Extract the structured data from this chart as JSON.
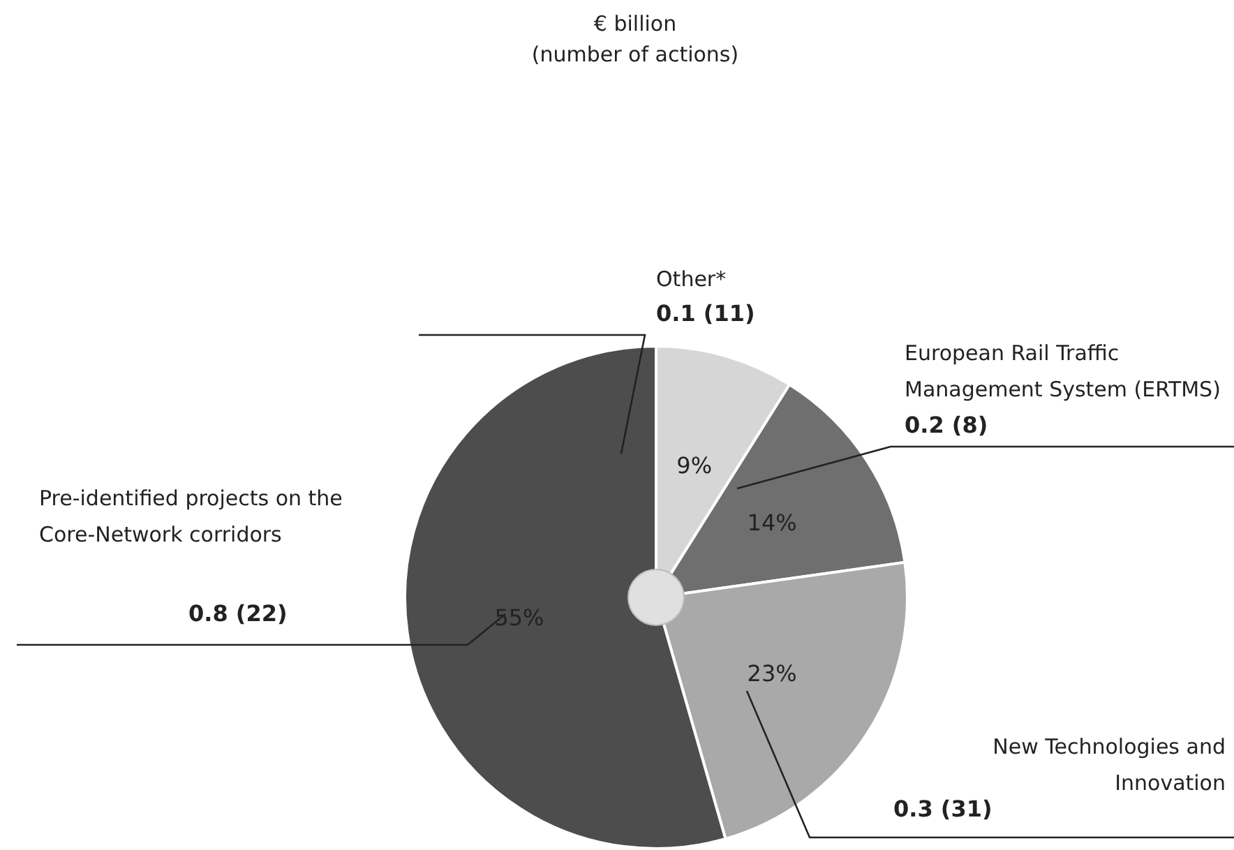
{
  "chart_data": {
    "type": "pie",
    "title": "€ billion",
    "subtitle": "(number of actions)",
    "categories": [
      "Other*",
      "European Rail Traffic Management System (ERTMS)",
      "New Technologies and Innovation",
      "Pre-identified projects on the Core-Network corridors"
    ],
    "values": [
      9,
      14,
      23,
      55
    ],
    "colors": [
      "#d6d6d6",
      "#6f6f6f",
      "#a9a9a9",
      "#4d4d4d"
    ],
    "value_labels": [
      "9%",
      "14%",
      "23%",
      "55%"
    ],
    "annotations": [
      "0.1 (11)",
      "0.2 (8)",
      "0.3 (31)",
      "0.8 (22)"
    ]
  }
}
